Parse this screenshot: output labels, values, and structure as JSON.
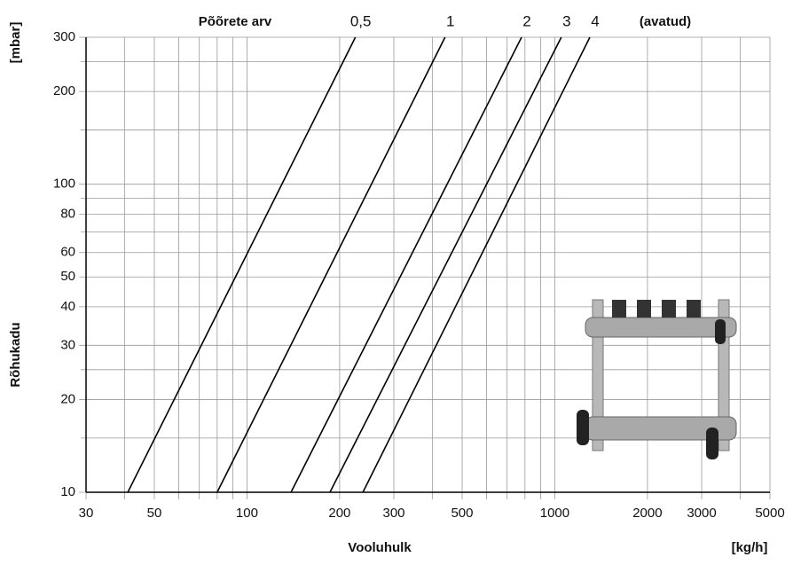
{
  "chart_data": {
    "type": "line",
    "title": "Põõrete arv",
    "subtitle": "(avatud)",
    "y_unit": "[mbar]",
    "y_label": "Rõhukadu",
    "x_label": "Vooluhulk",
    "x_unit": "[kg/h]",
    "xlog": true,
    "ylog": true,
    "grid": true,
    "xlim": [
      30,
      5000
    ],
    "ylim": [
      10,
      300
    ],
    "xticks": [
      30,
      50,
      100,
      200,
      300,
      500,
      1000,
      2000,
      3000,
      5000
    ],
    "xminor": [
      40,
      60,
      70,
      80,
      90,
      400,
      600,
      700,
      800,
      900,
      4000
    ],
    "yticks": [
      10,
      20,
      30,
      40,
      50,
      60,
      80,
      100,
      200,
      300
    ],
    "yminor": [
      15,
      25,
      70,
      90,
      150,
      250
    ],
    "series": [
      {
        "name": "0,5",
        "color": "#000000",
        "x": [
          41,
          225
        ],
        "values": [
          10,
          300
        ]
      },
      {
        "name": "1",
        "color": "#000000",
        "x": [
          80,
          440
        ],
        "values": [
          10,
          300
        ]
      },
      {
        "name": "2",
        "color": "#000000",
        "x": [
          139,
          780
        ],
        "values": [
          10,
          300
        ]
      },
      {
        "name": "3",
        "color": "#000000",
        "x": [
          186,
          1050
        ],
        "values": [
          10,
          300
        ]
      },
      {
        "name": "4",
        "color": "#000000",
        "x": [
          238,
          1300
        ],
        "values": [
          10,
          300
        ]
      }
    ]
  }
}
